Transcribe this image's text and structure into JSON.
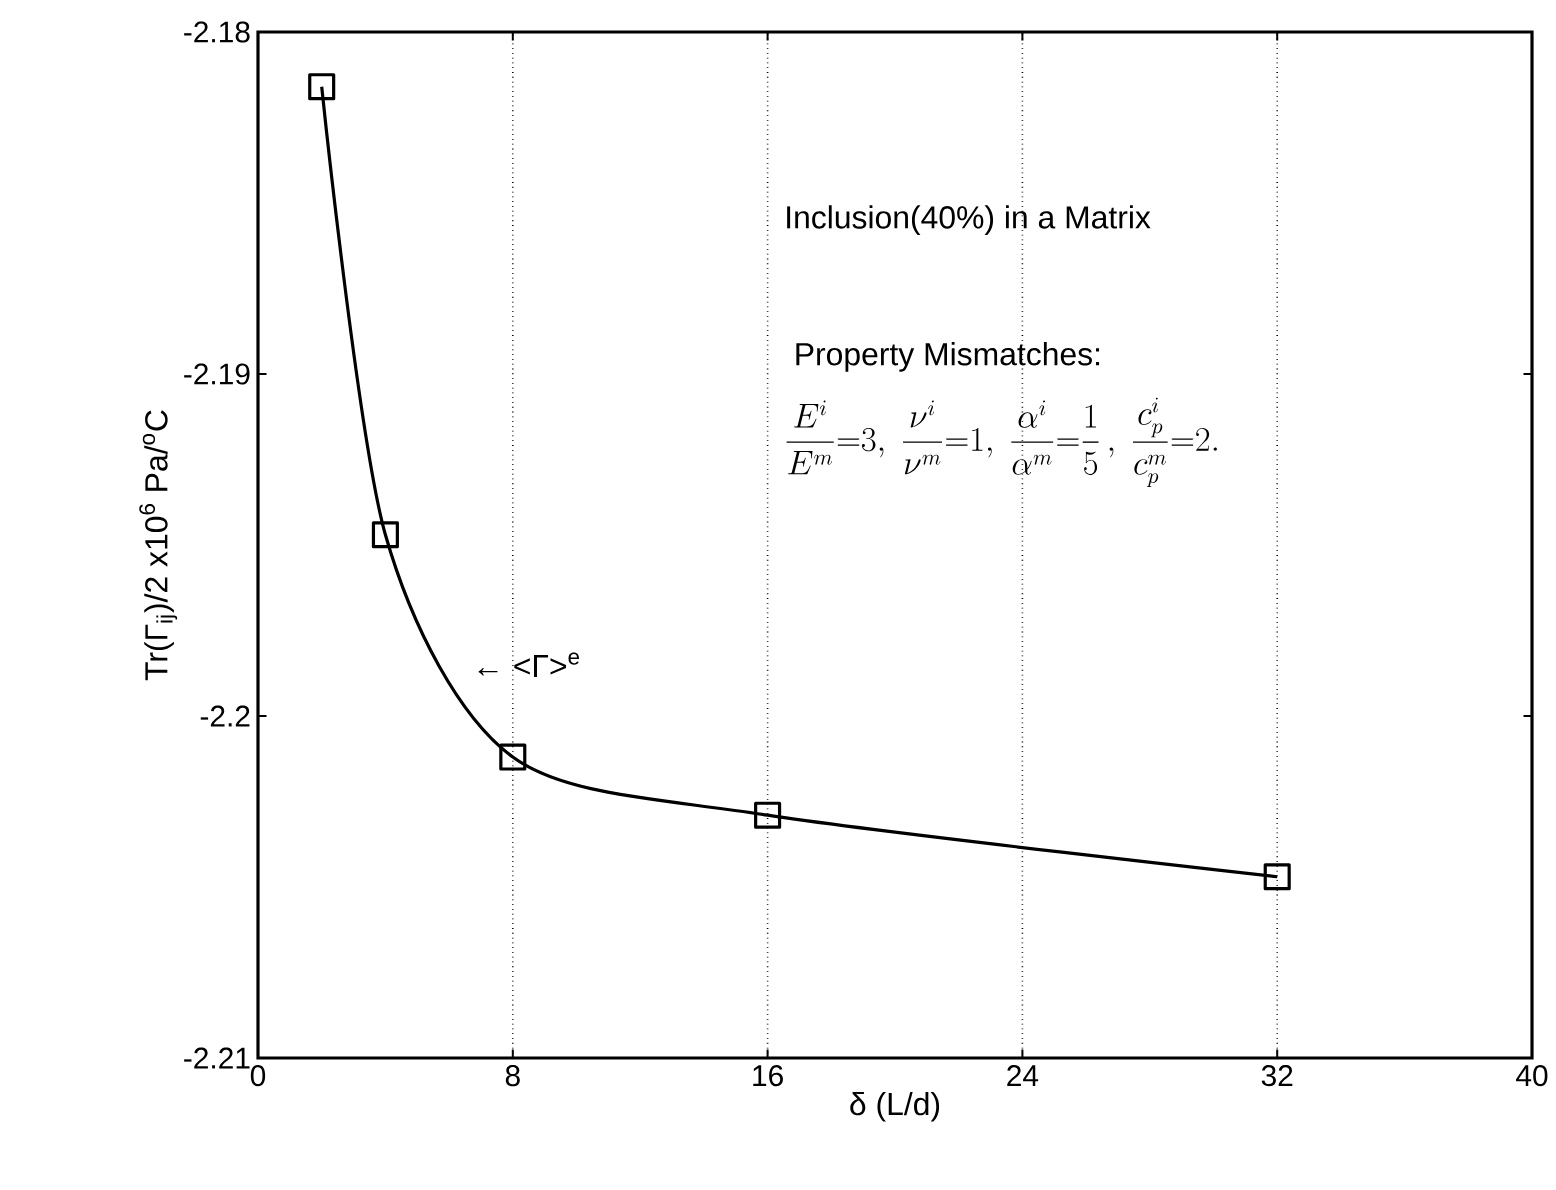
{
  "chart_data": {
    "type": "line",
    "xlabel": "δ (L/d)",
    "ylabel": "Tr(Γ$_{ij}$)/2 x10$^{6}$ Pa/$^{o}$C",
    "x": [
      2,
      4,
      8,
      16,
      32
    ],
    "series": [
      {
        "color": "#000000",
        "values": [
          -2.1816,
          -2.1947,
          -2.2012,
          -2.2029,
          -2.2047
        ]
      }
    ],
    "xlim": [
      0,
      40
    ],
    "xticks": [
      0,
      8,
      16,
      24,
      32,
      40
    ],
    "ylim": [
      -2.21,
      -2.18
    ],
    "yticks": [
      -2.21,
      -2.19,
      -2.2,
      -2.18
    ],
    "grid": "x",
    "marker": "square",
    "line_style": "solid",
    "annotations": [
      "← <Γ>$^{e}$",
      "Inclusion(40%) in a Matrix",
      "Property Mismatches:",
      "\\frac{E^{i}}{E^{m}}{=}3,\\ \\frac{\\nu^{i}}{\\nu^{m}}{=}1,\\ \\frac{\\alpha^{i}}{\\alpha^{m}}{=}\\frac{1}{5}\\,,\\ \\frac{c_{p}^{i}}{c_{p}^{m}}{=}2."
    ]
  }
}
